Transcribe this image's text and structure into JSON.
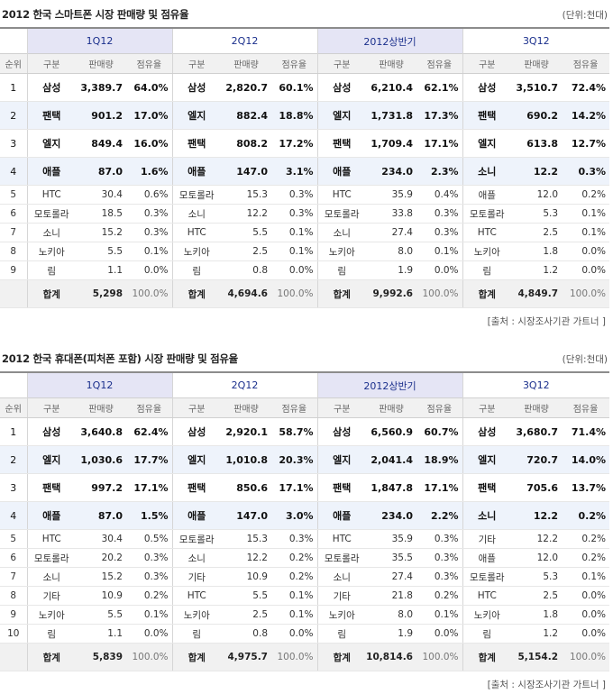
{
  "unit_label": "(단위:천대)",
  "source_label": "[출처 : 시장조사기관 가트너 ]",
  "subheaders": {
    "rank": "순위",
    "group": "구분",
    "sales": "판매량",
    "share": "점유율"
  },
  "quarters": [
    "1Q12",
    "2Q12",
    "2012상반기",
    "3Q12"
  ],
  "total_label": "합계",
  "table1": {
    "title": "2012 한국 스마트폰 시장 판매량 및 점유율",
    "rows": [
      {
        "rank": "1",
        "cells": [
          [
            "삼성",
            "3,389.7",
            "64.0%"
          ],
          [
            "삼성",
            "2,820.7",
            "60.1%"
          ],
          [
            "삼성",
            "6,210.4",
            "62.1%"
          ],
          [
            "삼성",
            "3,510.7",
            "72.4%"
          ]
        ]
      },
      {
        "rank": "2",
        "cells": [
          [
            "팬택",
            "901.2",
            "17.0%"
          ],
          [
            "엘지",
            "882.4",
            "18.8%"
          ],
          [
            "엘지",
            "1,731.8",
            "17.3%"
          ],
          [
            "팬택",
            "690.2",
            "14.2%"
          ]
        ]
      },
      {
        "rank": "3",
        "cells": [
          [
            "엘지",
            "849.4",
            "16.0%"
          ],
          [
            "팬택",
            "808.2",
            "17.2%"
          ],
          [
            "팬택",
            "1,709.4",
            "17.1%"
          ],
          [
            "엘지",
            "613.8",
            "12.7%"
          ]
        ]
      },
      {
        "rank": "4",
        "cells": [
          [
            "애플",
            "87.0",
            "1.6%"
          ],
          [
            "애플",
            "147.0",
            "3.1%"
          ],
          [
            "애플",
            "234.0",
            "2.3%"
          ],
          [
            "소니",
            "12.2",
            "0.3%"
          ]
        ]
      },
      {
        "rank": "5",
        "cells": [
          [
            "HTC",
            "30.4",
            "0.6%"
          ],
          [
            "모토롤라",
            "15.3",
            "0.3%"
          ],
          [
            "HTC",
            "35.9",
            "0.4%"
          ],
          [
            "애플",
            "12.0",
            "0.2%"
          ]
        ]
      },
      {
        "rank": "6",
        "cells": [
          [
            "모토롤라",
            "18.5",
            "0.3%"
          ],
          [
            "소니",
            "12.2",
            "0.3%"
          ],
          [
            "모토롤라",
            "33.8",
            "0.3%"
          ],
          [
            "모토롤라",
            "5.3",
            "0.1%"
          ]
        ]
      },
      {
        "rank": "7",
        "cells": [
          [
            "소니",
            "15.2",
            "0.3%"
          ],
          [
            "HTC",
            "5.5",
            "0.1%"
          ],
          [
            "소니",
            "27.4",
            "0.3%"
          ],
          [
            "HTC",
            "2.5",
            "0.1%"
          ]
        ]
      },
      {
        "rank": "8",
        "cells": [
          [
            "노키아",
            "5.5",
            "0.1%"
          ],
          [
            "노키아",
            "2.5",
            "0.1%"
          ],
          [
            "노키아",
            "8.0",
            "0.1%"
          ],
          [
            "노키아",
            "1.8",
            "0.0%"
          ]
        ]
      },
      {
        "rank": "9",
        "cells": [
          [
            "림",
            "1.1",
            "0.0%"
          ],
          [
            "림",
            "0.8",
            "0.0%"
          ],
          [
            "림",
            "1.9",
            "0.0%"
          ],
          [
            "림",
            "1.2",
            "0.0%"
          ]
        ]
      }
    ],
    "totals": [
      [
        "5,298",
        "100.0%"
      ],
      [
        "4,694.6",
        "100.0%"
      ],
      [
        "9,992.6",
        "100.0%"
      ],
      [
        "4,849.7",
        "100.0%"
      ]
    ]
  },
  "table2": {
    "title": "2012 한국 휴대폰(피처폰 포함) 시장 판매량 및 점유율",
    "rows": [
      {
        "rank": "1",
        "cells": [
          [
            "삼성",
            "3,640.8",
            "62.4%"
          ],
          [
            "삼성",
            "2,920.1",
            "58.7%"
          ],
          [
            "삼성",
            "6,560.9",
            "60.7%"
          ],
          [
            "삼성",
            "3,680.7",
            "71.4%"
          ]
        ]
      },
      {
        "rank": "2",
        "cells": [
          [
            "엘지",
            "1,030.6",
            "17.7%"
          ],
          [
            "엘지",
            "1,010.8",
            "20.3%"
          ],
          [
            "엘지",
            "2,041.4",
            "18.9%"
          ],
          [
            "엘지",
            "720.7",
            "14.0%"
          ]
        ]
      },
      {
        "rank": "3",
        "cells": [
          [
            "팬택",
            "997.2",
            "17.1%"
          ],
          [
            "팬택",
            "850.6",
            "17.1%"
          ],
          [
            "팬택",
            "1,847.8",
            "17.1%"
          ],
          [
            "팬택",
            "705.6",
            "13.7%"
          ]
        ]
      },
      {
        "rank": "4",
        "cells": [
          [
            "애플",
            "87.0",
            "1.5%"
          ],
          [
            "애플",
            "147.0",
            "3.0%"
          ],
          [
            "애플",
            "234.0",
            "2.2%"
          ],
          [
            "소니",
            "12.2",
            "0.2%"
          ]
        ]
      },
      {
        "rank": "5",
        "cells": [
          [
            "HTC",
            "30.4",
            "0.5%"
          ],
          [
            "모토롤라",
            "15.3",
            "0.3%"
          ],
          [
            "HTC",
            "35.9",
            "0.3%"
          ],
          [
            "기타",
            "12.2",
            "0.2%"
          ]
        ]
      },
      {
        "rank": "6",
        "cells": [
          [
            "모토롤라",
            "20.2",
            "0.3%"
          ],
          [
            "소니",
            "12.2",
            "0.2%"
          ],
          [
            "모토롤라",
            "35.5",
            "0.3%"
          ],
          [
            "애플",
            "12.0",
            "0.2%"
          ]
        ]
      },
      {
        "rank": "7",
        "cells": [
          [
            "소니",
            "15.2",
            "0.3%"
          ],
          [
            "기타",
            "10.9",
            "0.2%"
          ],
          [
            "소니",
            "27.4",
            "0.3%"
          ],
          [
            "모토롤라",
            "5.3",
            "0.1%"
          ]
        ]
      },
      {
        "rank": "8",
        "cells": [
          [
            "기타",
            "10.9",
            "0.2%"
          ],
          [
            "HTC",
            "5.5",
            "0.1%"
          ],
          [
            "기타",
            "21.8",
            "0.2%"
          ],
          [
            "HTC",
            "2.5",
            "0.0%"
          ]
        ]
      },
      {
        "rank": "9",
        "cells": [
          [
            "노키아",
            "5.5",
            "0.1%"
          ],
          [
            "노키아",
            "2.5",
            "0.1%"
          ],
          [
            "노키아",
            "8.0",
            "0.1%"
          ],
          [
            "노키아",
            "1.8",
            "0.0%"
          ]
        ]
      },
      {
        "rank": "10",
        "cells": [
          [
            "림",
            "1.1",
            "0.0%"
          ],
          [
            "림",
            "0.8",
            "0.0%"
          ],
          [
            "림",
            "1.9",
            "0.0%"
          ],
          [
            "림",
            "1.2",
            "0.0%"
          ]
        ]
      }
    ],
    "totals": [
      [
        "5,839",
        "100.0%"
      ],
      [
        "4,975.7",
        "100.0%"
      ],
      [
        "10,814.6",
        "100.0%"
      ],
      [
        "5,154.2",
        "100.0%"
      ]
    ]
  }
}
